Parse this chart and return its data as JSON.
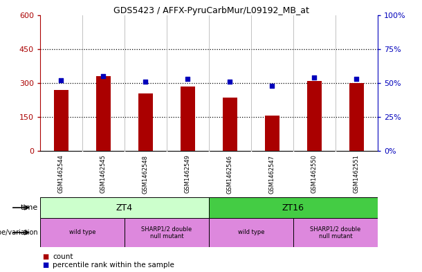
{
  "title": "GDS5423 / AFFX-PyruCarbMur/L09192_MB_at",
  "samples": [
    "GSM1462544",
    "GSM1462545",
    "GSM1462548",
    "GSM1462549",
    "GSM1462546",
    "GSM1462547",
    "GSM1462550",
    "GSM1462551"
  ],
  "counts": [
    270,
    330,
    255,
    285,
    235,
    155,
    310,
    300
  ],
  "percentile_ranks": [
    52,
    55,
    51,
    53,
    51,
    48,
    54,
    53
  ],
  "ylim_left": [
    0,
    600
  ],
  "ylim_right": [
    0,
    100
  ],
  "yticks_left": [
    0,
    150,
    300,
    450,
    600
  ],
  "yticks_right": [
    0,
    25,
    50,
    75,
    100
  ],
  "ytick_labels_left": [
    "0",
    "150",
    "300",
    "450",
    "600"
  ],
  "ytick_labels_right": [
    "0%",
    "25%",
    "50%",
    "75%",
    "100%"
  ],
  "bar_color": "#aa0000",
  "dot_color": "#0000bb",
  "bar_width": 0.35,
  "time_labels": [
    "ZT4",
    "ZT16"
  ],
  "time_color_zt4": "#ccffcc",
  "time_color_zt16": "#44cc44",
  "genotype_labels": [
    "wild type",
    "SHARP1/2 double\nnull mutant",
    "wild type",
    "SHARP1/2 double\nnull mutant"
  ],
  "genotype_color": "#dd88dd",
  "legend_count_color": "#aa0000",
  "legend_pct_color": "#0000bb",
  "chart_bg": "#ffffff",
  "sample_area_bg": "#cccccc",
  "grid_dotted_color": "#000000"
}
